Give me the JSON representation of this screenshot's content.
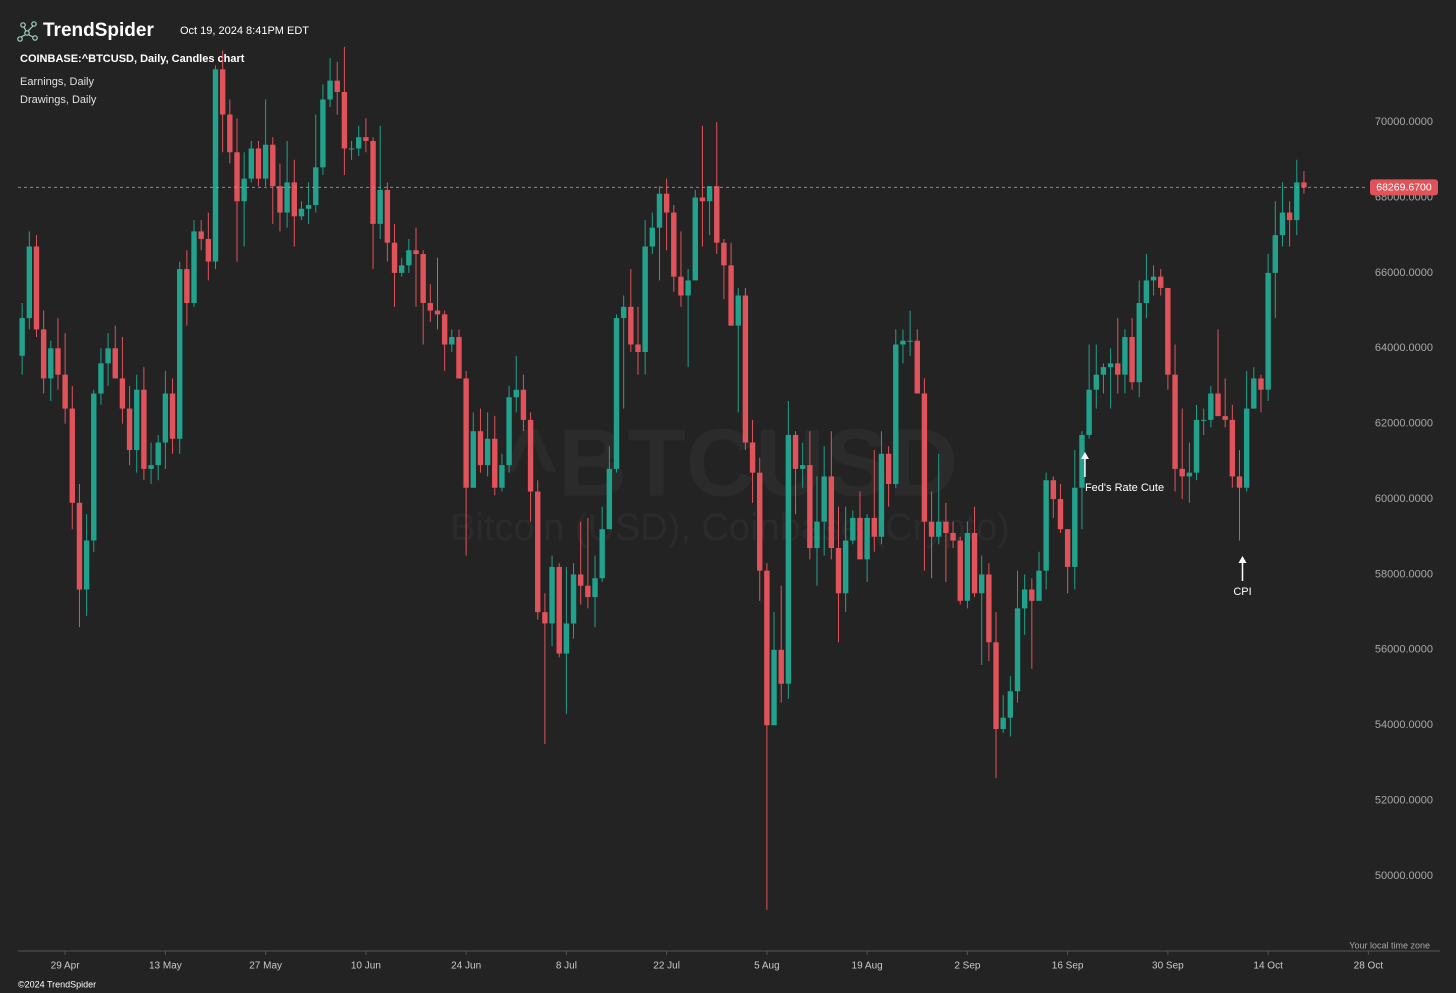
{
  "header": {
    "brand": "TrendSpider",
    "timestamp": "Oct 19, 2024 8:41PM EDT",
    "chart_label": "COINBASE:^BTCUSD, Daily, Candles chart",
    "layers": [
      "Earnings, Daily",
      "Drawings, Daily"
    ]
  },
  "watermark": {
    "symbol": "^BTCUSD",
    "name": "Bitcoin (USD), Coinbase (Crypto)"
  },
  "footer": {
    "timezone": "Your local time zone",
    "copyright": "©2024 TrendSpider"
  },
  "chart_data": {
    "type": "candlestick",
    "up_color": "#22a18c",
    "down_color": "#e0535b",
    "grid": false,
    "ylim": [
      48000,
      73000
    ],
    "yticks": [
      {
        "value": 50000,
        "label": "50000.0000"
      },
      {
        "value": 52000,
        "label": "52000.0000"
      },
      {
        "value": 54000,
        "label": "54000.0000"
      },
      {
        "value": 56000,
        "label": "56000.0000"
      },
      {
        "value": 58000,
        "label": "58000.0000"
      },
      {
        "value": 60000,
        "label": "60000.0000"
      },
      {
        "value": 62000,
        "label": "62000.0000"
      },
      {
        "value": 64000,
        "label": "64000.0000"
      },
      {
        "value": 66000,
        "label": "66000.0000"
      },
      {
        "value": 68000,
        "label": "68000.0000"
      },
      {
        "value": 70000,
        "label": "70000.0000"
      }
    ],
    "xlim": [
      "22 Apr",
      "7 Nov"
    ],
    "xticks": [
      "29 Apr",
      "13 May",
      "27 May",
      "10 Jun",
      "24 Jun",
      "8 Jul",
      "22 Jul",
      "5 Aug",
      "19 Aug",
      "2 Sep",
      "16 Sep",
      "30 Sep",
      "14 Oct",
      "28 Oct"
    ],
    "last_price": {
      "value": 68269.67,
      "label": "68269.6700"
    },
    "annotations": [
      {
        "text": "Fed's Rate Cute",
        "date": "18 Sep"
      },
      {
        "text": "CPI",
        "date": "10 Oct"
      }
    ],
    "x": [
      "23 Apr",
      "24 Apr",
      "25 Apr",
      "26 Apr",
      "27 Apr",
      "28 Apr",
      "29 Apr",
      "30 Apr",
      "1 May",
      "2 May",
      "3 May",
      "4 May",
      "5 May",
      "6 May",
      "7 May",
      "8 May",
      "9 May",
      "10 May",
      "11 May",
      "12 May",
      "13 May",
      "14 May",
      "15 May",
      "16 May",
      "17 May",
      "18 May",
      "19 May",
      "20 May",
      "21 May",
      "22 May",
      "23 May",
      "24 May",
      "25 May",
      "26 May",
      "27 May",
      "28 May",
      "29 May",
      "30 May",
      "31 May",
      "1 Jun",
      "2 Jun",
      "3 Jun",
      "4 Jun",
      "5 Jun",
      "6 Jun",
      "7 Jun",
      "8 Jun",
      "9 Jun",
      "10 Jun",
      "11 Jun",
      "12 Jun",
      "13 Jun",
      "14 Jun",
      "15 Jun",
      "16 Jun",
      "17 Jun",
      "18 Jun",
      "19 Jun",
      "20 Jun",
      "21 Jun",
      "22 Jun",
      "23 Jun",
      "24 Jun",
      "25 Jun",
      "26 Jun",
      "27 Jun",
      "28 Jun",
      "29 Jun",
      "30 Jun",
      "1 Jul",
      "2 Jul",
      "3 Jul",
      "4 Jul",
      "5 Jul",
      "6 Jul",
      "7 Jul",
      "8 Jul",
      "9 Jul",
      "10 Jul",
      "11 Jul",
      "12 Jul",
      "13 Jul",
      "14 Jul",
      "15 Jul",
      "16 Jul",
      "17 Jul",
      "18 Jul",
      "19 Jul",
      "20 Jul",
      "21 Jul",
      "22 Jul",
      "23 Jul",
      "24 Jul",
      "25 Jul",
      "26 Jul",
      "27 Jul",
      "28 Jul",
      "29 Jul",
      "30 Jul",
      "31 Jul",
      "1 Aug",
      "2 Aug",
      "3 Aug",
      "4 Aug",
      "5 Aug",
      "6 Aug",
      "7 Aug",
      "8 Aug",
      "9 Aug",
      "10 Aug",
      "11 Aug",
      "12 Aug",
      "13 Aug",
      "14 Aug",
      "15 Aug",
      "16 Aug",
      "17 Aug",
      "18 Aug",
      "19 Aug",
      "20 Aug",
      "21 Aug",
      "22 Aug",
      "23 Aug",
      "24 Aug",
      "25 Aug",
      "26 Aug",
      "27 Aug",
      "28 Aug",
      "29 Aug",
      "30 Aug",
      "31 Aug",
      "1 Sep",
      "2 Sep",
      "3 Sep",
      "4 Sep",
      "5 Sep",
      "6 Sep",
      "7 Sep",
      "8 Sep",
      "9 Sep",
      "10 Sep",
      "11 Sep",
      "12 Sep",
      "13 Sep",
      "14 Sep",
      "15 Sep",
      "16 Sep",
      "17 Sep",
      "18 Sep",
      "19 Sep",
      "20 Sep",
      "21 Sep",
      "22 Sep",
      "23 Sep",
      "24 Sep",
      "25 Sep",
      "26 Sep",
      "27 Sep",
      "28 Sep",
      "29 Sep",
      "30 Sep",
      "1 Oct",
      "2 Oct",
      "3 Oct",
      "4 Oct",
      "5 Oct",
      "6 Oct",
      "7 Oct",
      "8 Oct",
      "9 Oct",
      "10 Oct",
      "11 Oct",
      "12 Oct",
      "13 Oct",
      "14 Oct",
      "15 Oct",
      "16 Oct",
      "17 Oct",
      "18 Oct",
      "19 Oct"
    ],
    "open": [
      63800,
      64800,
      66700,
      64500,
      63200,
      64000,
      63300,
      62400,
      59900,
      57600,
      58900,
      62800,
      63600,
      64000,
      63200,
      62400,
      61300,
      62900,
      60800,
      60900,
      61500,
      62800,
      61600,
      66100,
      65200,
      67100,
      66900,
      66300,
      71400,
      70200,
      69200,
      67900,
      68500,
      69300,
      68500,
      69400,
      68300,
      67600,
      68400,
      67500,
      67700,
      67800,
      68800,
      70600,
      71100,
      70800,
      69300,
      69300,
      69600,
      69500,
      67300,
      68200,
      66800,
      66000,
      66200,
      66600,
      66500,
      65200,
      65000,
      64900,
      64100,
      64300,
      63200,
      60300,
      61800,
      60900,
      61600,
      60300,
      60900,
      62700,
      62900,
      62100,
      60200,
      57000,
      56700,
      58200,
      55900,
      56700,
      58000,
      57700,
      57400,
      57900,
      59200,
      60800,
      64800,
      65100,
      64100,
      63900,
      66700,
      67200,
      68100,
      67600,
      65900,
      65400,
      65800,
      68000,
      67900,
      68300,
      66800,
      66200,
      64600,
      65400,
      61500,
      60700,
      58100,
      54000,
      56000,
      55100,
      61700,
      60800,
      60900,
      58700,
      59400,
      60600,
      58700,
      57500,
      58900,
      59500,
      58400,
      59500,
      59000,
      61200,
      60400,
      64100,
      64200,
      64200,
      62800,
      59400,
      59000,
      59400,
      59100,
      58900,
      57300,
      59100,
      57500,
      58000,
      56200,
      53900,
      54200,
      54900,
      57100,
      57600,
      57300,
      58100,
      60500,
      60000,
      59200,
      58200,
      60300,
      61700,
      62900,
      63300,
      63500,
      63600,
      63300,
      64300,
      63100,
      65200,
      65800,
      65900,
      65600,
      63300,
      60800,
      60600,
      60700,
      62100,
      62100,
      62800,
      62200,
      62100,
      60600,
      60300,
      62400,
      63200,
      62900,
      66000,
      67000,
      67600,
      67400,
      68400
    ],
    "high": [
      65200,
      67100,
      67000,
      65000,
      64200,
      64800,
      64400,
      63000,
      60400,
      59600,
      62900,
      64000,
      64400,
      64600,
      64300,
      63000,
      63300,
      63500,
      61500,
      61700,
      63400,
      63200,
      66300,
      66600,
      67400,
      67400,
      67600,
      71500,
      71900,
      70600,
      70100,
      69200,
      69500,
      69500,
      70600,
      69600,
      68900,
      69500,
      69000,
      67900,
      68400,
      70200,
      71000,
      71700,
      71600,
      72000,
      69500,
      69900,
      70100,
      69600,
      69900,
      68400,
      67300,
      66400,
      66900,
      67200,
      66600,
      65700,
      66400,
      65000,
      64500,
      64500,
      63400,
      62300,
      62400,
      62300,
      62200,
      61200,
      63000,
      63800,
      63300,
      62300,
      60500,
      57500,
      58500,
      58300,
      58200,
      58300,
      59400,
      59500,
      58500,
      59800,
      61400,
      64900,
      65400,
      66100,
      65100,
      67400,
      67600,
      68300,
      68500,
      67800,
      67100,
      66100,
      68200,
      69900,
      68300,
      70000,
      66900,
      66800,
      65600,
      65600,
      62100,
      61100,
      58300,
      57000,
      57700,
      62600,
      61800,
      61500,
      61800,
      60600,
      61400,
      61800,
      59800,
      59800,
      59700,
      60200,
      59600,
      61300,
      61800,
      61400,
      64500,
      64500,
      65000,
      64500,
      63200,
      60200,
      61200,
      59900,
      59400,
      59000,
      59400,
      59800,
      58500,
      58300,
      57000,
      54800,
      55300,
      58100,
      58000,
      57900,
      58600,
      60700,
      60600,
      60400,
      59200,
      61300,
      61800,
      64100,
      64100,
      63600,
      64000,
      64800,
      64500,
      64800,
      65800,
      66500,
      66200,
      66100,
      65600,
      64100,
      62400,
      61500,
      62500,
      62400,
      63000,
      64500,
      63200,
      62500,
      61300,
      63400,
      63500,
      63300,
      66500,
      67900,
      68400,
      67900,
      69000,
      68700
    ],
    "low": [
      63300,
      64500,
      64300,
      62800,
      62600,
      62900,
      62000,
      59200,
      56600,
      56900,
      58600,
      62500,
      63000,
      63200,
      62000,
      60900,
      60700,
      60500,
      60400,
      60500,
      60800,
      61200,
      61200,
      64600,
      65100,
      66600,
      65800,
      66100,
      69200,
      68900,
      66300,
      66700,
      68400,
      68300,
      68300,
      67300,
      67100,
      67200,
      66700,
      67400,
      67300,
      67600,
      68600,
      70400,
      70200,
      68600,
      69000,
      69100,
      69200,
      66100,
      66900,
      66300,
      65100,
      65900,
      66000,
      65100,
      64100,
      64700,
      64500,
      63400,
      63900,
      63200,
      58500,
      60300,
      60700,
      60600,
      60100,
      60200,
      60700,
      62300,
      61800,
      59400,
      56800,
      53500,
      56100,
      55800,
      54300,
      56300,
      57200,
      57100,
      56600,
      57800,
      59200,
      60700,
      62400,
      63900,
      63300,
      63300,
      66500,
      65800,
      66600,
      65500,
      65100,
      63500,
      65800,
      66700,
      67000,
      66500,
      65300,
      64600,
      62300,
      61300,
      59900,
      57300,
      49100,
      54000,
      54600,
      54700,
      59600,
      60300,
      58400,
      57700,
      58500,
      58400,
      56200,
      57000,
      58800,
      58400,
      57800,
      58600,
      58800,
      59800,
      60300,
      63600,
      63800,
      62800,
      58100,
      57900,
      58800,
      57800,
      58700,
      57200,
      57100,
      57400,
      55600,
      55700,
      52600,
      53800,
      53700,
      54600,
      56400,
      55500,
      57300,
      57600,
      59500,
      59100,
      57500,
      57600,
      59200,
      61600,
      62400,
      62800,
      62400,
      62800,
      62800,
      62900,
      62700,
      64800,
      65400,
      65400,
      62900,
      60200,
      60000,
      59900,
      60500,
      61700,
      61900,
      62200,
      61900,
      60300,
      58900,
      60200,
      62400,
      62300,
      62600,
      64800,
      66700,
      66700,
      67000,
      68100
    ],
    "close": [
      64800,
      66700,
      64500,
      63200,
      64000,
      63300,
      62400,
      59900,
      57600,
      58900,
      62800,
      63600,
      64000,
      63200,
      62400,
      61300,
      62900,
      60800,
      60900,
      61500,
      62800,
      61600,
      66100,
      65200,
      67100,
      66900,
      66300,
      71400,
      70200,
      69200,
      67900,
      68500,
      69300,
      68500,
      69400,
      68300,
      67600,
      68400,
      67500,
      67700,
      67800,
      68800,
      70600,
      71100,
      70800,
      69300,
      69300,
      69600,
      69500,
      67300,
      68200,
      66800,
      66000,
      66200,
      66600,
      66500,
      65200,
      65000,
      64900,
      64100,
      64300,
      63200,
      60300,
      61800,
      60900,
      61600,
      60300,
      60900,
      62700,
      62900,
      62100,
      60200,
      57000,
      56700,
      58200,
      55900,
      56700,
      58000,
      57700,
      57400,
      57900,
      59200,
      60800,
      64800,
      65100,
      64100,
      63900,
      66700,
      67200,
      68100,
      67600,
      65900,
      65400,
      65800,
      68000,
      67900,
      68300,
      66800,
      66200,
      64600,
      65400,
      61500,
      60700,
      58100,
      54000,
      56000,
      55100,
      61700,
      60800,
      60900,
      58700,
      59400,
      60600,
      58700,
      57500,
      58900,
      59500,
      58400,
      59500,
      59000,
      61200,
      60400,
      64100,
      64200,
      64200,
      62800,
      59400,
      59000,
      59400,
      59100,
      58900,
      57300,
      59100,
      57500,
      58000,
      56200,
      53900,
      54200,
      54900,
      57100,
      57600,
      57300,
      58100,
      60500,
      60000,
      59200,
      58200,
      60300,
      61700,
      62900,
      63300,
      63500,
      63600,
      63300,
      64300,
      63100,
      65200,
      65800,
      65900,
      65600,
      63300,
      60800,
      60600,
      60700,
      62100,
      62100,
      62800,
      62200,
      62100,
      60600,
      60300,
      62400,
      63200,
      62900,
      66000,
      67000,
      67600,
      67400,
      68400,
      68269.67
    ]
  }
}
